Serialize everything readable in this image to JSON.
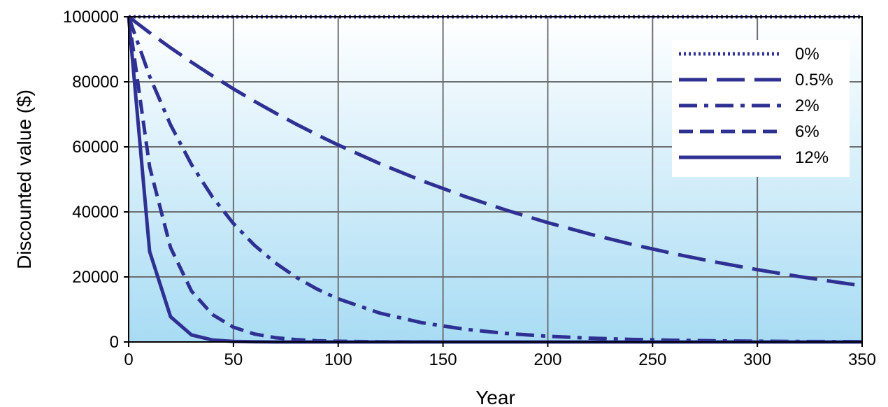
{
  "chart_data": {
    "type": "line",
    "title": "",
    "xlabel": "Year",
    "ylabel": "Discounted value ($)",
    "xlim": [
      0,
      350
    ],
    "ylim": [
      0,
      100000
    ],
    "xticks": [
      "0",
      "50",
      "100",
      "150",
      "200",
      "250",
      "300",
      "350"
    ],
    "yticks": [
      "0",
      "20000",
      "40000",
      "60000",
      "80000",
      "100000"
    ],
    "grid": true,
    "legend_position": "top-right",
    "series": [
      {
        "name": "0%",
        "rate": 0,
        "style": "dotted",
        "color": "#2e3192"
      },
      {
        "name": "0.5%",
        "rate": 0.005,
        "style": "longdash",
        "color": "#2e3192"
      },
      {
        "name": "2%",
        "rate": 0.02,
        "style": "dashdot",
        "color": "#2e3192"
      },
      {
        "name": "6%",
        "rate": 0.06,
        "style": "dashed",
        "color": "#2e3192"
      },
      {
        "name": "12%",
        "rate": 0.12,
        "style": "solid",
        "color": "#2e3192"
      }
    ],
    "x": [
      0,
      10,
      20,
      30,
      40,
      50,
      60,
      70,
      80,
      90,
      100,
      120,
      140,
      160,
      180,
      200,
      220,
      240,
      260,
      280,
      300,
      320,
      340,
      350
    ],
    "background_gradient": [
      "#ffffff",
      "#a8dcf4"
    ]
  }
}
